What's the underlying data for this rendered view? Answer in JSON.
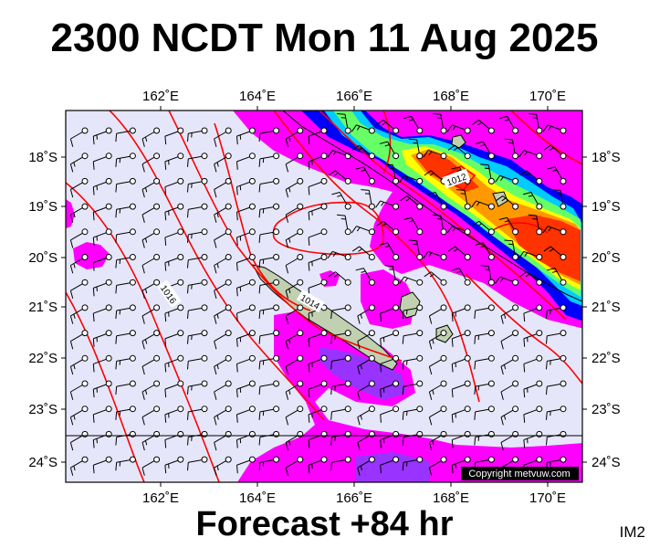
{
  "title": "2300 NCDT Mon 11 Aug 2025",
  "footer": "Forecast +84 hr",
  "corner_label": "IM2",
  "copyright": "Copyright metvuw.com",
  "longitude_labels": [
    "162˚E",
    "164˚E",
    "166˚E",
    "168˚E",
    "170˚E"
  ],
  "latitude_labels": [
    "18˚S",
    "19˚S",
    "20˚S",
    "21˚S",
    "22˚S",
    "23˚S",
    "24˚S"
  ],
  "isobar_labels": [
    "1012",
    "1014",
    "1016"
  ],
  "colors": {
    "background": "#e6e6fa",
    "rain_light": "#ff00ff",
    "rain_moderate": "#9933ff",
    "rain_heavy": "#0000ff",
    "rain_cyan": "#00ccff",
    "rain_green": "#66ff66",
    "rain_yellow": "#ffff00",
    "rain_orange": "#ff9900",
    "rain_red": "#ff3300",
    "isobar": "#ff0000",
    "land": "#c0d0b0"
  }
}
